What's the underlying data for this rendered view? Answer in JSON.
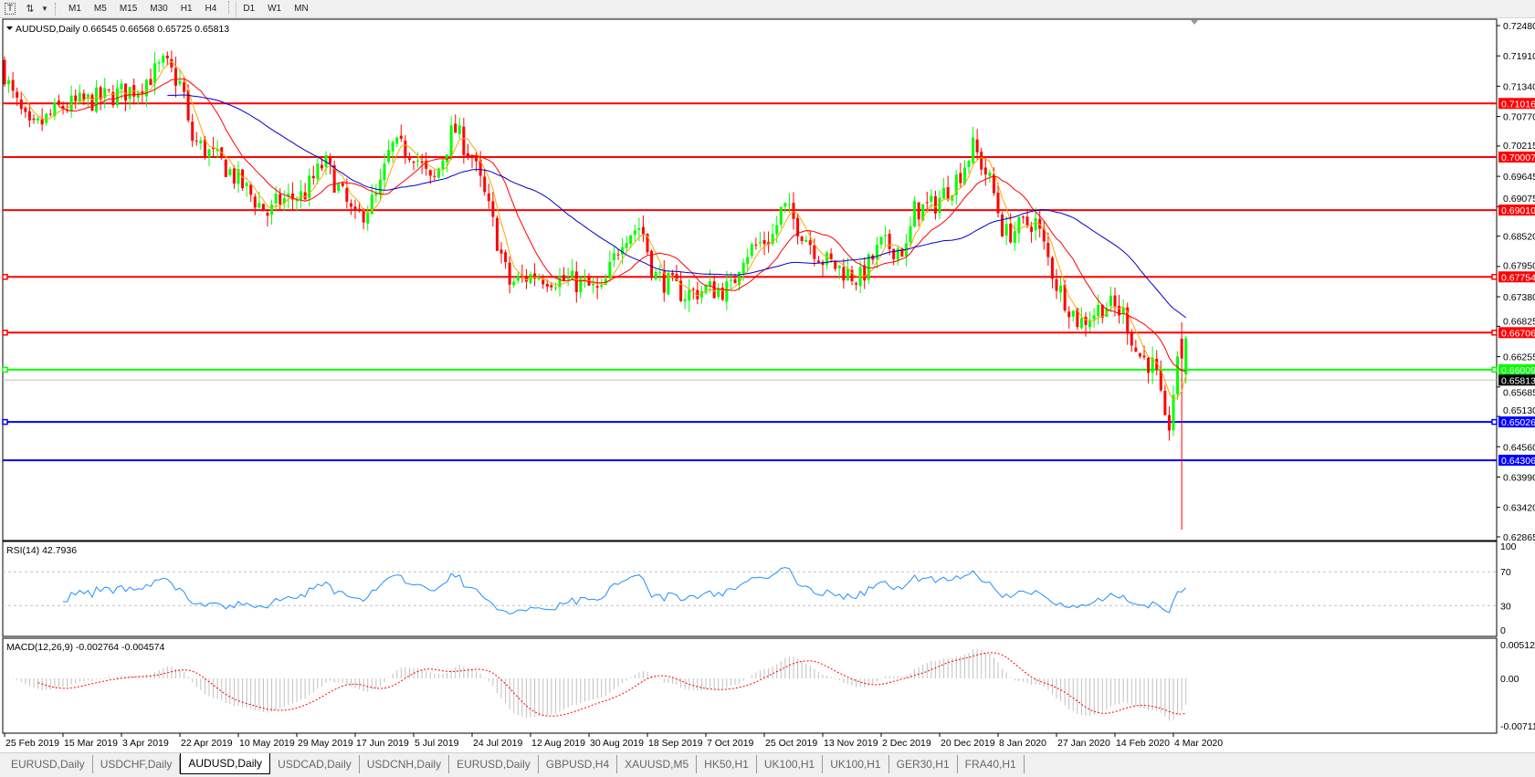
{
  "toolbar": {
    "icons": [
      "text-tool-icon",
      "arrows-tool-icon",
      "dropdown-triangle-icon"
    ],
    "text_icon_glyph": "T",
    "periods": [
      "M1",
      "M5",
      "M15",
      "M30",
      "H1",
      "H4",
      "D1",
      "W1",
      "MN"
    ],
    "active_period": "D1"
  },
  "chart": {
    "header": "AUDUSD,Daily  0.66545 0.66568 0.65725 0.65813",
    "symbol": "AUDUSD",
    "timeframe": "Daily",
    "ohlc": {
      "open": 0.66545,
      "high": 0.66568,
      "low": 0.65725,
      "close": 0.65813
    },
    "colors": {
      "bull": "#00ff00",
      "bear": "#ff0000",
      "ma_fast": "#ffa500",
      "ma_mid": "#ff0000",
      "ma_slow": "#0000cd",
      "rsi": "#1e90ff",
      "macd_hist": "#c0c0c0",
      "macd_signal": "#ff0000"
    },
    "price_axis": [
      "0.72480",
      "0.71910",
      "0.71340",
      "0.70770",
      "0.70215",
      "0.69645",
      "0.69075",
      "0.68520",
      "0.67950",
      "0.67380",
      "0.66825",
      "0.66255",
      "0.65685",
      "0.65130",
      "0.64560",
      "0.63990",
      "0.63420",
      "0.62865"
    ],
    "levels": [
      {
        "price": "0.71016",
        "color": "#ff0000",
        "handle": false
      },
      {
        "price": "0.70007",
        "color": "#ff0000",
        "handle": false
      },
      {
        "price": "0.69010",
        "color": "#ff0000",
        "handle": false
      },
      {
        "price": "0.67754",
        "color": "#ff0000",
        "handle": true
      },
      {
        "price": "0.66706",
        "color": "#ff0000",
        "handle": true
      },
      {
        "price": "0.66009",
        "color": "#00ff00",
        "handle": true
      },
      {
        "price": "0.65026",
        "color": "#0000ff",
        "handle": true
      },
      {
        "price": "0.64306",
        "color": "#0000ff",
        "handle": false
      }
    ],
    "bid": {
      "price": "0.65813",
      "line_color": "#c0c0c0",
      "tag_color": "#000000"
    },
    "close_path": [
      [
        "25 Feb 2019",
        0.716
      ],
      [
        "27 Feb 2019",
        0.7121
      ],
      [
        "5 Mar 2019",
        0.7047
      ],
      [
        "14 Mar 2019",
        0.7093
      ],
      [
        "28 Mar 2019",
        0.7112
      ],
      [
        "8 Apr 2019",
        0.713
      ],
      [
        "17 Apr 2019",
        0.7176
      ],
      [
        "23 Apr 2019",
        0.713
      ],
      [
        "25 Apr 2019",
        0.7038
      ],
      [
        "6 May 2019",
        0.6983
      ],
      [
        "20 May 2019",
        0.6891
      ],
      [
        "23 May 2019",
        0.6918
      ],
      [
        "31 May 2019",
        0.6928
      ],
      [
        "7 Jun 2019",
        0.6992
      ],
      [
        "17 Jun 2019",
        0.6881
      ],
      [
        "24 Jun 2019",
        0.6928
      ],
      [
        "28 Jun 2019",
        0.702
      ],
      [
        "5 Jul 2019",
        0.701
      ],
      [
        "11 Jul 2019",
        0.6946
      ],
      [
        "18 Jul 2019",
        0.7056
      ],
      [
        "24 Jul 2019",
        0.7001
      ],
      [
        "30 Jul 2019",
        0.6891
      ],
      [
        "5 Aug 2019",
        0.6762
      ],
      [
        "13 Aug 2019",
        0.678
      ],
      [
        "21 Aug 2019",
        0.6771
      ],
      [
        "28 Aug 2019",
        0.6762
      ],
      [
        "3 Sep 2019",
        0.6743
      ],
      [
        "10 Sep 2019",
        0.6854
      ],
      [
        "16 Sep 2019",
        0.6872
      ],
      [
        "20 Sep 2019",
        0.678
      ],
      [
        "30 Sep 2019",
        0.6743
      ],
      [
        "7 Oct 2019",
        0.6752
      ],
      [
        "15 Oct 2019",
        0.6752
      ],
      [
        "18 Oct 2019",
        0.6817
      ],
      [
        "28 Oct 2019",
        0.6854
      ],
      [
        "31 Oct 2019",
        0.6909
      ],
      [
        "6 Nov 2019",
        0.6863
      ],
      [
        "13 Nov 2019",
        0.6808
      ],
      [
        "25 Nov 2019",
        0.6771
      ],
      [
        "2 Dec 2019",
        0.6835
      ],
      [
        "10 Dec 2019",
        0.6826
      ],
      [
        "12 Dec 2019",
        0.69
      ],
      [
        "18 Dec 2019",
        0.6909
      ],
      [
        "26 Dec 2019",
        0.6964
      ],
      [
        "31 Dec 2019",
        0.702
      ],
      [
        "6 Jan 2020",
        0.6946
      ],
      [
        "10 Jan 2020",
        0.6854
      ],
      [
        "20 Jan 2020",
        0.6882
      ],
      [
        "27 Jan 2020",
        0.6762
      ],
      [
        "3 Feb 2020",
        0.6688
      ],
      [
        "7 Feb 2020",
        0.6706
      ],
      [
        "11 Feb 2020",
        0.6725
      ],
      [
        "17 Feb 2020",
        0.6706
      ],
      [
        "21 Feb 2020",
        0.6633
      ],
      [
        "27 Feb 2020",
        0.6605
      ],
      [
        "2 Mar 2020",
        0.647
      ],
      [
        "4 Mar 2020",
        0.6559
      ],
      [
        "6 Mar 2020",
        0.6624
      ]
    ],
    "recent_bars": [
      {
        "open": 0.6659,
        "high": 0.669,
        "low": 0.63,
        "close": 0.6622
      },
      {
        "open": 0.6592,
        "high": 0.6665,
        "low": 0.6575,
        "close": 0.666
      }
    ]
  },
  "rsi": {
    "label": "RSI(14) 42.7936",
    "axis": [
      "100",
      "70",
      "30",
      "0"
    ]
  },
  "macd": {
    "label": "MACD(12,26,9) -0.002764 -0.004574",
    "axis": [
      "0.005121",
      "0.00",
      "-0.00711"
    ]
  },
  "x_axis": {
    "labels": [
      "25 Feb 2019",
      "15 Mar 2019",
      "3 Apr 2019",
      "22 Apr 2019",
      "10 May 2019",
      "29 May 2019",
      "17 Jun 2019",
      "5 Jul 2019",
      "24 Jul 2019",
      "12 Aug 2019",
      "30 Aug 2019",
      "18 Sep 2019",
      "7 Oct 2019",
      "25 Oct 2019",
      "13 Nov 2019",
      "2 Dec 2019",
      "20 Dec 2019",
      "8 Jan 2020",
      "27 Jan 2020",
      "14 Feb 2020",
      "4 Mar 2020"
    ]
  },
  "tabs": [
    {
      "label": "EURUSD,Daily",
      "active": false
    },
    {
      "label": "USDCHF,Daily",
      "active": false
    },
    {
      "label": "AUDUSD,Daily",
      "active": true
    },
    {
      "label": "USDCAD,Daily",
      "active": false
    },
    {
      "label": "USDCNH,Daily",
      "active": false
    },
    {
      "label": "EURUSD,Daily",
      "active": false
    },
    {
      "label": "GBPUSD,H4",
      "active": false
    },
    {
      "label": "XAUUSD,M5",
      "active": false
    },
    {
      "label": "HK50,H1",
      "active": false
    },
    {
      "label": "UK100,H1",
      "active": false
    },
    {
      "label": "UK100,H1",
      "active": false
    },
    {
      "label": "GER30,H1",
      "active": false
    },
    {
      "label": "FRA40,H1",
      "active": false
    }
  ]
}
